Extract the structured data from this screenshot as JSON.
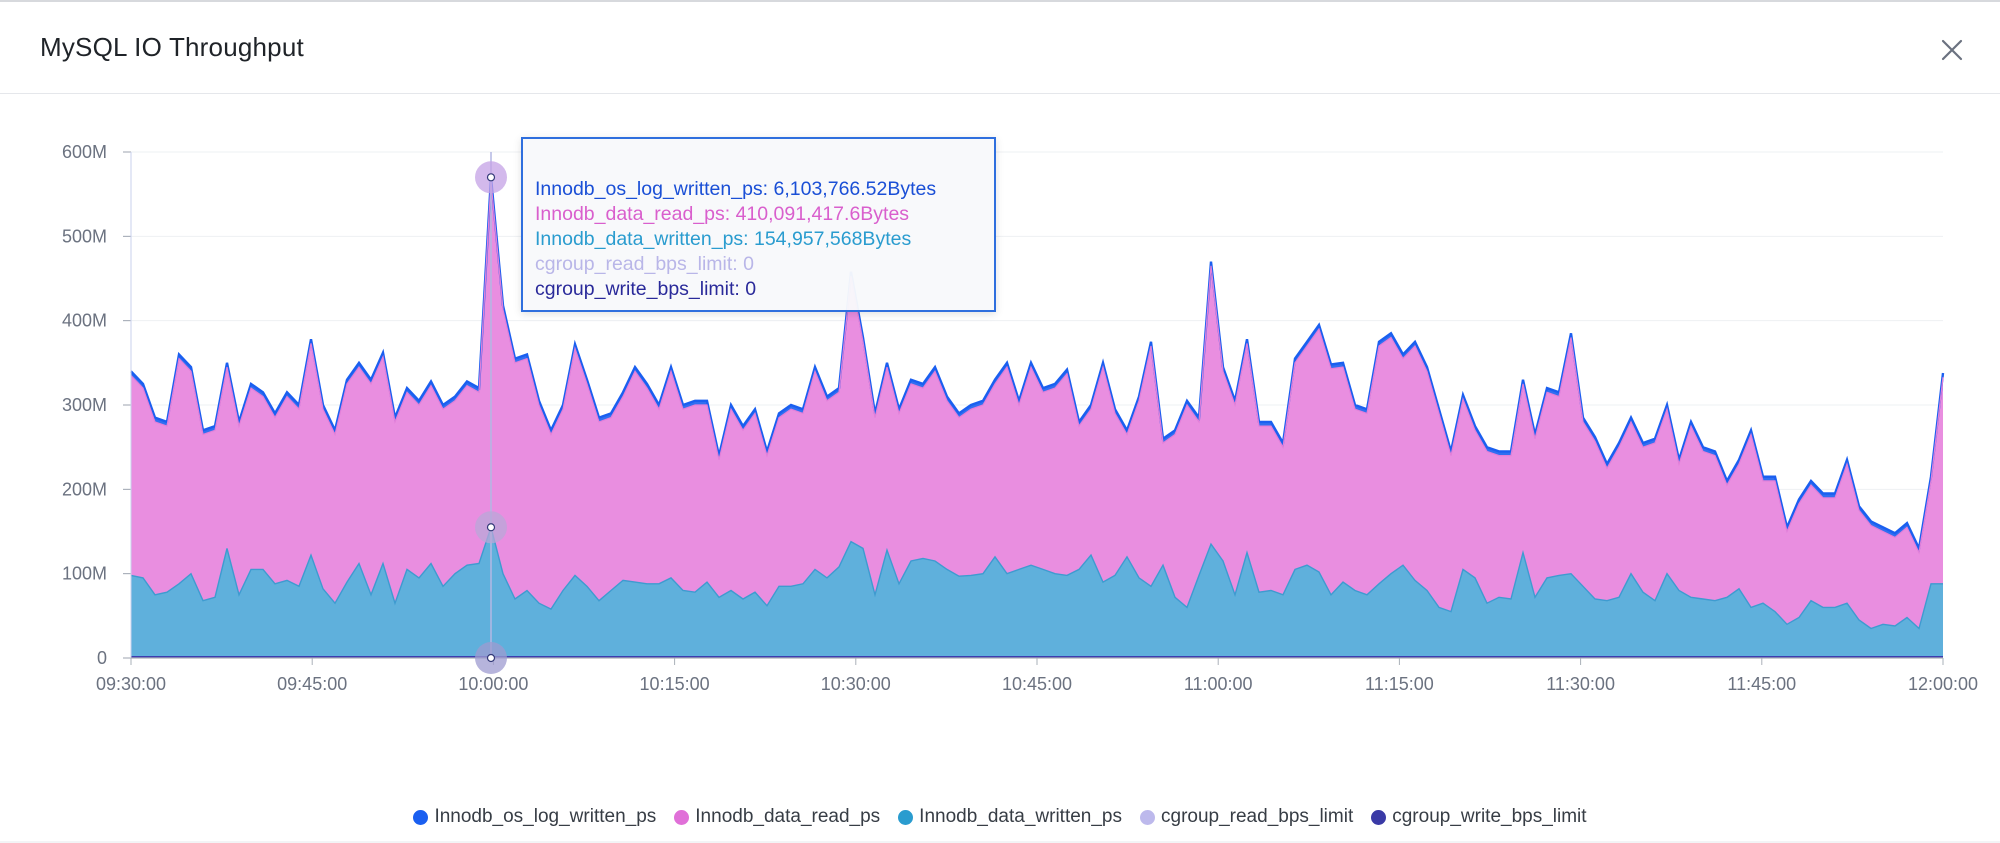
{
  "modal": {
    "title": "MySQL IO Throughput",
    "close_icon": "close-icon"
  },
  "colors": {
    "log_written": "#1a5ff0",
    "data_read": "#e98ee0",
    "data_read_text": "#d95fcd",
    "data_written": "#5fb0dc",
    "data_written_text": "#2a9ccf",
    "cgroup_read": "#b9b6e8",
    "cgroup_write": "#3c3caf"
  },
  "tooltip": {
    "rows": [
      {
        "label": "Innodb_os_log_written_ps",
        "value": "6,103,766.52Bytes",
        "text": "Innodb_os_log_written_ps: 6,103,766.52Bytes",
        "color": "#1a4fd6"
      },
      {
        "label": "Innodb_data_read_ps",
        "value": "410,091,417.6Bytes",
        "text": "Innodb_data_read_ps: 410,091,417.6Bytes",
        "color": "#d95fcd"
      },
      {
        "label": "Innodb_data_written_ps",
        "value": "154,957,568Bytes",
        "text": "Innodb_data_written_ps: 154,957,568Bytes",
        "color": "#2a9ccf"
      },
      {
        "label": "cgroup_read_bps_limit",
        "value": "0",
        "text": "cgroup_read_bps_limit: 0",
        "color": "#b9b6e8"
      },
      {
        "label": "cgroup_write_bps_limit",
        "value": "0",
        "text": "cgroup_write_bps_limit: 0",
        "color": "#2a2a9a"
      }
    ]
  },
  "chart_data": {
    "type": "area",
    "stacked": true,
    "title": "MySQL IO Throughput",
    "xlabel": "",
    "ylabel": "",
    "ylim": [
      0,
      600
    ],
    "y_unit": "M",
    "y_ticks": [
      "0",
      "100M",
      "200M",
      "300M",
      "400M",
      "500M",
      "600M"
    ],
    "x_range_minutes": [
      0,
      152
    ],
    "x_ticks": [
      "09:30:00",
      "09:45:00",
      "10:00:00",
      "10:15:00",
      "10:30:00",
      "10:45:00",
      "11:00:00",
      "11:15:00",
      "11:30:00",
      "11:45:00",
      "12:00:00"
    ],
    "hover_index": 30,
    "stack_tops_keyframes": [
      [
        0,
        340
      ],
      [
        1,
        325
      ],
      [
        2,
        285
      ],
      [
        3,
        280
      ],
      [
        4,
        360
      ],
      [
        5,
        345
      ],
      [
        6,
        270
      ],
      [
        7,
        275
      ],
      [
        8,
        350
      ],
      [
        9,
        280
      ],
      [
        10,
        325
      ],
      [
        11,
        315
      ],
      [
        12,
        290
      ],
      [
        13,
        315
      ],
      [
        14,
        300
      ],
      [
        15,
        378
      ],
      [
        16,
        300
      ],
      [
        17,
        270
      ],
      [
        18,
        330
      ],
      [
        19,
        350
      ],
      [
        20,
        330
      ],
      [
        21,
        362
      ],
      [
        22,
        285
      ],
      [
        23,
        320
      ],
      [
        24,
        305
      ],
      [
        25,
        328
      ],
      [
        26,
        300
      ],
      [
        27,
        310
      ],
      [
        28,
        328
      ],
      [
        29,
        320
      ],
      [
        30,
        570
      ],
      [
        31,
        418
      ],
      [
        32,
        355
      ],
      [
        33,
        360
      ],
      [
        34,
        305
      ],
      [
        35,
        270
      ],
      [
        36,
        300
      ],
      [
        37,
        372
      ],
      [
        38,
        330
      ],
      [
        39,
        285
      ],
      [
        40,
        290
      ],
      [
        41,
        315
      ],
      [
        42,
        345
      ],
      [
        43,
        325
      ],
      [
        44,
        300
      ],
      [
        45,
        345
      ],
      [
        46,
        300
      ],
      [
        47,
        305
      ],
      [
        48,
        305
      ],
      [
        49,
        240
      ],
      [
        50,
        300
      ],
      [
        51,
        275
      ],
      [
        52,
        295
      ],
      [
        53,
        245
      ],
      [
        54,
        290
      ],
      [
        55,
        300
      ],
      [
        56,
        295
      ],
      [
        57,
        345
      ],
      [
        58,
        310
      ],
      [
        59,
        320
      ],
      [
        60,
        458
      ],
      [
        61,
        380
      ],
      [
        62,
        290
      ],
      [
        63,
        350
      ],
      [
        64,
        295
      ],
      [
        65,
        330
      ],
      [
        66,
        325
      ],
      [
        67,
        345
      ],
      [
        68,
        310
      ],
      [
        69,
        290
      ],
      [
        70,
        300
      ],
      [
        71,
        305
      ],
      [
        72,
        330
      ],
      [
        73,
        350
      ],
      [
        74,
        305
      ],
      [
        75,
        350
      ],
      [
        76,
        320
      ],
      [
        77,
        325
      ],
      [
        78,
        342
      ],
      [
        79,
        280
      ],
      [
        80,
        300
      ],
      [
        81,
        350
      ],
      [
        82,
        295
      ],
      [
        83,
        270
      ],
      [
        84,
        310
      ],
      [
        85,
        375
      ],
      [
        86,
        260
      ],
      [
        87,
        270
      ],
      [
        88,
        305
      ],
      [
        89,
        285
      ],
      [
        90,
        470
      ],
      [
        91,
        345
      ],
      [
        92,
        305
      ],
      [
        93,
        378
      ],
      [
        94,
        280
      ],
      [
        95,
        280
      ],
      [
        96,
        255
      ],
      [
        97,
        355
      ],
      [
        98,
        375
      ],
      [
        99,
        395
      ],
      [
        100,
        348
      ],
      [
        101,
        350
      ],
      [
        102,
        300
      ],
      [
        103,
        295
      ],
      [
        104,
        375
      ],
      [
        105,
        385
      ],
      [
        106,
        360
      ],
      [
        107,
        375
      ],
      [
        108,
        345
      ],
      [
        109,
        295
      ],
      [
        110,
        245
      ],
      [
        111,
        312
      ],
      [
        112,
        275
      ],
      [
        113,
        250
      ],
      [
        114,
        245
      ],
      [
        115,
        245
      ],
      [
        116,
        330
      ],
      [
        117,
        265
      ],
      [
        118,
        320
      ],
      [
        119,
        315
      ],
      [
        120,
        385
      ],
      [
        121,
        285
      ],
      [
        122,
        262
      ],
      [
        123,
        230
      ],
      [
        124,
        255
      ],
      [
        125,
        285
      ],
      [
        126,
        255
      ],
      [
        127,
        260
      ],
      [
        128,
        300
      ],
      [
        129,
        235
      ],
      [
        130,
        280
      ],
      [
        131,
        250
      ],
      [
        132,
        245
      ],
      [
        133,
        210
      ],
      [
        134,
        235
      ],
      [
        135,
        270
      ],
      [
        136,
        215
      ],
      [
        137,
        215
      ],
      [
        138,
        155
      ],
      [
        139,
        188
      ],
      [
        140,
        210
      ],
      [
        141,
        195
      ],
      [
        142,
        195
      ],
      [
        143,
        235
      ],
      [
        144,
        180
      ],
      [
        145,
        162
      ],
      [
        146,
        155
      ],
      [
        147,
        148
      ],
      [
        148,
        160
      ],
      [
        149,
        130
      ],
      [
        150,
        215
      ],
      [
        151,
        338
      ]
    ],
    "data_written_keyframes": [
      [
        0,
        98
      ],
      [
        1,
        95
      ],
      [
        2,
        75
      ],
      [
        3,
        78
      ],
      [
        4,
        88
      ],
      [
        5,
        100
      ],
      [
        6,
        68
      ],
      [
        7,
        72
      ],
      [
        8,
        130
      ],
      [
        9,
        75
      ],
      [
        10,
        105
      ],
      [
        11,
        105
      ],
      [
        12,
        88
      ],
      [
        13,
        92
      ],
      [
        14,
        85
      ],
      [
        15,
        122
      ],
      [
        16,
        82
      ],
      [
        17,
        65
      ],
      [
        18,
        90
      ],
      [
        19,
        112
      ],
      [
        20,
        75
      ],
      [
        21,
        112
      ],
      [
        22,
        65
      ],
      [
        23,
        105
      ],
      [
        24,
        95
      ],
      [
        25,
        112
      ],
      [
        26,
        85
      ],
      [
        27,
        100
      ],
      [
        28,
        110
      ],
      [
        29,
        112
      ],
      [
        30,
        155
      ],
      [
        31,
        100
      ],
      [
        32,
        70
      ],
      [
        33,
        80
      ],
      [
        34,
        65
      ],
      [
        35,
        58
      ],
      [
        36,
        80
      ],
      [
        37,
        98
      ],
      [
        38,
        85
      ],
      [
        39,
        68
      ],
      [
        40,
        80
      ],
      [
        41,
        92
      ],
      [
        42,
        90
      ],
      [
        43,
        88
      ],
      [
        44,
        88
      ],
      [
        45,
        95
      ],
      [
        46,
        80
      ],
      [
        47,
        78
      ],
      [
        48,
        90
      ],
      [
        49,
        72
      ],
      [
        50,
        80
      ],
      [
        51,
        70
      ],
      [
        52,
        78
      ],
      [
        53,
        62
      ],
      [
        54,
        85
      ],
      [
        55,
        85
      ],
      [
        56,
        88
      ],
      [
        57,
        105
      ],
      [
        58,
        95
      ],
      [
        59,
        108
      ],
      [
        60,
        138
      ],
      [
        61,
        130
      ],
      [
        62,
        75
      ],
      [
        63,
        128
      ],
      [
        64,
        88
      ],
      [
        65,
        115
      ],
      [
        66,
        118
      ],
      [
        67,
        115
      ],
      [
        68,
        105
      ],
      [
        69,
        97
      ],
      [
        70,
        98
      ],
      [
        71,
        100
      ],
      [
        72,
        120
      ],
      [
        73,
        100
      ],
      [
        74,
        105
      ],
      [
        75,
        110
      ],
      [
        76,
        105
      ],
      [
        77,
        100
      ],
      [
        78,
        98
      ],
      [
        79,
        105
      ],
      [
        80,
        122
      ],
      [
        81,
        90
      ],
      [
        82,
        98
      ],
      [
        83,
        120
      ],
      [
        84,
        95
      ],
      [
        85,
        85
      ],
      [
        86,
        110
      ],
      [
        87,
        72
      ],
      [
        88,
        60
      ],
      [
        89,
        98
      ],
      [
        90,
        135
      ],
      [
        91,
        115
      ],
      [
        92,
        75
      ],
      [
        93,
        125
      ],
      [
        94,
        78
      ],
      [
        95,
        80
      ],
      [
        96,
        75
      ],
      [
        97,
        105
      ],
      [
        98,
        110
      ],
      [
        99,
        102
      ],
      [
        100,
        75
      ],
      [
        101,
        90
      ],
      [
        102,
        80
      ],
      [
        103,
        75
      ],
      [
        104,
        88
      ],
      [
        105,
        100
      ],
      [
        106,
        110
      ],
      [
        107,
        92
      ],
      [
        108,
        80
      ],
      [
        109,
        60
      ],
      [
        110,
        55
      ],
      [
        111,
        105
      ],
      [
        112,
        95
      ],
      [
        113,
        65
      ],
      [
        114,
        72
      ],
      [
        115,
        70
      ],
      [
        116,
        125
      ],
      [
        117,
        72
      ],
      [
        118,
        95
      ],
      [
        119,
        98
      ],
      [
        120,
        100
      ],
      [
        121,
        85
      ],
      [
        122,
        70
      ],
      [
        123,
        68
      ],
      [
        124,
        72
      ],
      [
        125,
        100
      ],
      [
        126,
        78
      ],
      [
        127,
        68
      ],
      [
        128,
        100
      ],
      [
        129,
        80
      ],
      [
        130,
        72
      ],
      [
        131,
        70
      ],
      [
        132,
        68
      ],
      [
        133,
        72
      ],
      [
        134,
        82
      ],
      [
        135,
        60
      ],
      [
        136,
        65
      ],
      [
        137,
        55
      ],
      [
        138,
        40
      ],
      [
        139,
        48
      ],
      [
        140,
        68
      ],
      [
        141,
        60
      ],
      [
        142,
        60
      ],
      [
        143,
        65
      ],
      [
        144,
        45
      ],
      [
        145,
        35
      ],
      [
        146,
        40
      ],
      [
        147,
        38
      ],
      [
        148,
        48
      ],
      [
        149,
        35
      ],
      [
        150,
        88
      ],
      [
        151,
        88
      ]
    ],
    "series": [
      {
        "name": "Innodb_os_log_written_ps",
        "approx_values_M": "≈5 (thin band on top of stack)"
      },
      {
        "name": "Innodb_data_read_ps",
        "approx_values_M": "stack_tops - data_written"
      },
      {
        "name": "Innodb_data_written_ps",
        "approx_values_M": "data_written_keyframes"
      },
      {
        "name": "cgroup_read_bps_limit",
        "approx_values_M": 0
      },
      {
        "name": "cgroup_write_bps_limit",
        "approx_values_M": 0
      }
    ],
    "legend": [
      {
        "label": "Innodb_os_log_written_ps",
        "color": "#1a5ff0"
      },
      {
        "label": "Innodb_data_read_ps",
        "color": "#e070d8"
      },
      {
        "label": "Innodb_data_written_ps",
        "color": "#2a9ccf"
      },
      {
        "label": "cgroup_read_bps_limit",
        "color": "#bdb9ec"
      },
      {
        "label": "cgroup_write_bps_limit",
        "color": "#3a3aa6"
      }
    ]
  }
}
